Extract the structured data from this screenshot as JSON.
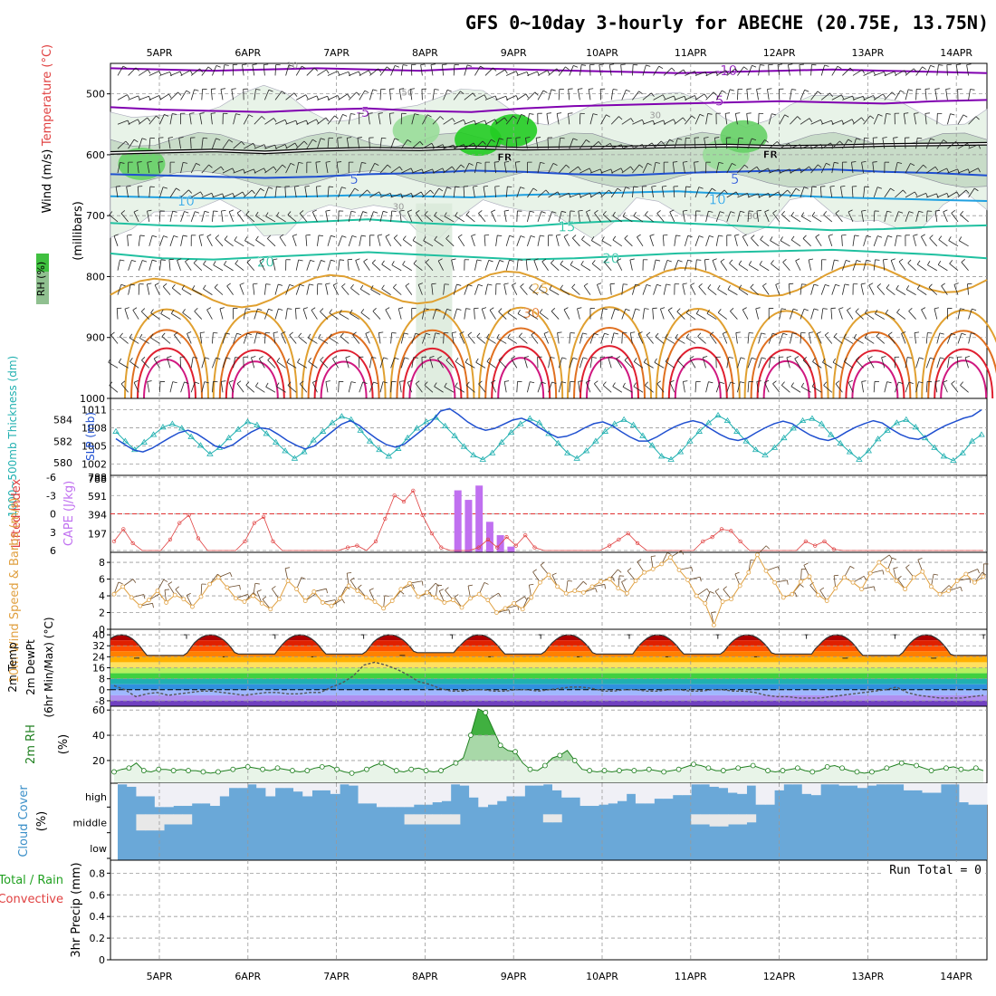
{
  "title": "GFS 0~10day 3-hourly for ABECHE (20.75E, 13.75N)",
  "colors": {
    "purple": "#8000b0",
    "blue": "#2050d0",
    "lightblue": "#20a0e0",
    "teal": "#20c0a0",
    "orange": "#e0a030",
    "darkorange": "#e07020",
    "red": "#e02030",
    "green": "#20c020",
    "cyan": "#20b0b0",
    "cape": "#c070f0",
    "wind": "#e0a040",
    "cloud": "#6aa8d8",
    "grid": "#9a9a9a"
  },
  "icons": {
    "wind_barb": "wind-barb-icon",
    "triangle_marker": "triangle-marker-icon",
    "circle_marker": "circle-marker-icon"
  },
  "chart_data": [
    {
      "panel": "upper-air",
      "type": "heatmap",
      "title": "GFS 0~10day 3-hourly for ABECHE (20.75E, 13.75N)",
      "x_categories": [
        "5APR",
        "6APR",
        "7APR",
        "8APR",
        "9APR",
        "10APR",
        "11APR",
        "12APR",
        "13APR",
        "14APR"
      ],
      "ylabel": "(millibars)",
      "side_labels": [
        "Wind (m/s)",
        "Temperature (°C)",
        "RH (%)"
      ],
      "ylim": [
        1000,
        450
      ],
      "y_ticks": [
        500,
        600,
        700,
        800,
        900,
        1000
      ],
      "isotherm_labels": [
        "-10",
        "-5",
        "-5",
        "FR",
        "FR",
        "5",
        "5",
        "10",
        "10",
        "15",
        "20",
        "20",
        "25",
        "30"
      ],
      "rh_labels": [
        "10",
        "30",
        "50"
      ],
      "isotherms": [
        {
          "temp": -10,
          "p": [
            458,
            460,
            462,
            460,
            458,
            460,
            462,
            458,
            460,
            462,
            464,
            466,
            464,
            462,
            460,
            462,
            464,
            466
          ]
        },
        {
          "temp": -5,
          "p": [
            522,
            526,
            528,
            530,
            526,
            524,
            528,
            530,
            524,
            520,
            518,
            516,
            514,
            512,
            514,
            516,
            512,
            510
          ]
        },
        {
          "temp": 0,
          "p": [
            597,
            595,
            593,
            596,
            592,
            590,
            591,
            588,
            590,
            589,
            588,
            586,
            585,
            587,
            586,
            584,
            583,
            582
          ]
        },
        {
          "temp": 5,
          "p": [
            632,
            634,
            636,
            638,
            636,
            632,
            630,
            626,
            628,
            632,
            634,
            630,
            628,
            626,
            624,
            628,
            630,
            634
          ]
        },
        {
          "temp": 10,
          "p": [
            668,
            670,
            672,
            670,
            668,
            666,
            668,
            670,
            666,
            664,
            662,
            660,
            664,
            666,
            670,
            672,
            674,
            676
          ]
        },
        {
          "temp": 15,
          "p": [
            712,
            716,
            718,
            714,
            710,
            706,
            712,
            716,
            718,
            712,
            708,
            712,
            716,
            720,
            724,
            722,
            718,
            716
          ]
        },
        {
          "temp": 20,
          "p": [
            762,
            770,
            772,
            768,
            764,
            760,
            764,
            768,
            772,
            770,
            766,
            762,
            760,
            758,
            756,
            760,
            764,
            770
          ]
        }
      ],
      "humid_regions": [
        {
          "x": 0.3,
          "p": 615,
          "rh": 70
        },
        {
          "x": 3.4,
          "p": 560,
          "rh": 50
        },
        {
          "x": 4.1,
          "p": 575,
          "rh": 80
        },
        {
          "x": 4.5,
          "p": 560,
          "rh": 90
        },
        {
          "x": 6.9,
          "p": 600,
          "rh": 50
        },
        {
          "x": 7.1,
          "p": 570,
          "rh": 60
        }
      ]
    },
    {
      "panel": "thickness-slp",
      "type": "line",
      "side_labels": [
        "1000~500mb Thickness (dm)",
        "SLP (mb)"
      ],
      "left_ticks": [
        580,
        582,
        584
      ],
      "right_ticks": [
        1002,
        1005,
        1008,
        1011
      ],
      "series": [
        {
          "name": "1000~500mb Thickness",
          "values": [
            582.9,
            582.0,
            581.2,
            581.9,
            582.6,
            583.3,
            583.6,
            583.2,
            582.4,
            581.6,
            580.8,
            581.4,
            582.3,
            583.1,
            583.8,
            583.5,
            582.7,
            581.9,
            581.1,
            580.4,
            581.0,
            582.1,
            582.9,
            583.7,
            584.3,
            584.0,
            583.0,
            582.0,
            581.2,
            580.6,
            581.3,
            582.3,
            583.2,
            583.8,
            584.2,
            583.4,
            582.5,
            581.5,
            580.7,
            580.3,
            580.9,
            581.9,
            582.8,
            583.6,
            584.1,
            583.7,
            582.7,
            581.8,
            580.9,
            580.4,
            581.1,
            582.0,
            582.9,
            583.6,
            584.0,
            583.5,
            582.5,
            581.6,
            580.6,
            580.3,
            581.0,
            582.0,
            582.9,
            583.7,
            584.4,
            583.9,
            582.9,
            582.0,
            581.2,
            580.7,
            581.4,
            582.3,
            583.2,
            583.9,
            584.1,
            583.6,
            582.6,
            581.8,
            581.0,
            580.3,
            581.1,
            582.2,
            583.0,
            583.7,
            584.0,
            583.3,
            582.3,
            581.4,
            580.6,
            580.2,
            580.9,
            582.0,
            582.6
          ]
        },
        {
          "name": "SLP",
          "values": [
            1006.2,
            1005.2,
            1004.3,
            1004.0,
            1004.6,
            1005.5,
            1006.4,
            1007.2,
            1007.6,
            1007.0,
            1006.0,
            1005.0,
            1004.6,
            1005.2,
            1006.3,
            1007.3,
            1008.0,
            1007.8,
            1006.9,
            1005.9,
            1005.1,
            1004.5,
            1005.0,
            1006.2,
            1007.4,
            1008.6,
            1009.2,
            1008.4,
            1007.2,
            1006.1,
            1005.2,
            1004.8,
            1005.3,
            1006.5,
            1007.7,
            1009.0,
            1010.8,
            1011.2,
            1010.2,
            1009.0,
            1008.1,
            1007.6,
            1007.9,
            1008.6,
            1009.3,
            1009.6,
            1009.0,
            1008.0,
            1007.1,
            1006.4,
            1006.6,
            1007.2,
            1008.0,
            1008.7,
            1009.0,
            1008.4,
            1007.4,
            1006.5,
            1005.8,
            1005.8,
            1006.5,
            1007.4,
            1008.2,
            1008.8,
            1009.2,
            1008.8,
            1007.8,
            1006.9,
            1006.2,
            1005.9,
            1006.3,
            1007.2,
            1008.0,
            1008.7,
            1009.1,
            1008.7,
            1007.7,
            1006.8,
            1006.2,
            1005.9,
            1006.4,
            1007.3,
            1008.1,
            1008.7,
            1009.2,
            1008.8,
            1007.8,
            1006.9,
            1006.3,
            1006.1,
            1006.7,
            1007.6,
            1008.4,
            1009.0,
            1009.6,
            1010.0,
            1011.0
          ]
        }
      ]
    },
    {
      "panel": "lifted-cape",
      "type": "bar",
      "side_labels": [
        "Lifted Index",
        "CAPE (J/kg)"
      ],
      "left_ticks": [
        "-6",
        "-3",
        "0",
        "3",
        "6"
      ],
      "right_ticks": [
        "197",
        "394",
        "591",
        "788"
      ],
      "cape_bars": [
        {
          "x": 3.82,
          "value": 650
        },
        {
          "x": 3.94,
          "value": 550
        },
        {
          "x": 4.06,
          "value": 700
        },
        {
          "x": 4.18,
          "value": 320
        },
        {
          "x": 4.3,
          "value": 180
        },
        {
          "x": 4.42,
          "value": 60
        }
      ],
      "lifted_index": [
        4.5,
        2.5,
        4.8,
        6,
        6,
        6,
        4.2,
        1.5,
        0.2,
        4,
        6,
        6,
        6,
        6,
        4.5,
        1.5,
        0.5,
        4.5,
        6,
        6,
        6,
        6,
        6,
        6,
        6,
        5.5,
        5.2,
        6,
        4.5,
        0.8,
        -3,
        -2,
        -3.8,
        0.2,
        3.2,
        5.5,
        6,
        6,
        6,
        5.5,
        4.2,
        5.5,
        3.8,
        5.2,
        3.5,
        5.5,
        6,
        6,
        6,
        6,
        6,
        6,
        6,
        5.2,
        4.2,
        3.2,
        4.8,
        6,
        6,
        6,
        6,
        6,
        6,
        4.5,
        3.8,
        2.5,
        2.8,
        4.5,
        6,
        6,
        6,
        6,
        6,
        6,
        4.5,
        5.2,
        4.5,
        5.8,
        6,
        6,
        6,
        6,
        6,
        6,
        6,
        6,
        6,
        6,
        6,
        6,
        6,
        6,
        6,
        6
      ]
    },
    {
      "panel": "wind-10m",
      "type": "line",
      "side_labels": [
        "10m Wind Speed & Barbs (m/s)"
      ],
      "left_ticks": [
        0,
        2,
        4,
        6,
        8
      ],
      "ylim": [
        0,
        9.2
      ],
      "values": [
        4.2,
        5.1,
        3.8,
        2.8,
        3.5,
        4.6,
        3.2,
        4.1,
        3.6,
        2.7,
        3.9,
        5.4,
        6.2,
        5.0,
        3.7,
        3.3,
        4.0,
        3.1,
        2.4,
        3.6,
        5.8,
        4.8,
        3.4,
        4.5,
        3.2,
        2.8,
        3.7,
        5.2,
        4.6,
        3.8,
        3.3,
        2.5,
        3.4,
        4.8,
        5.5,
        3.9,
        4.4,
        3.8,
        3.2,
        3.5,
        2.6,
        3.7,
        4.2,
        3.5,
        2.0,
        2.5,
        3.1,
        2.4,
        3.8,
        5.6,
        6.5,
        5.1,
        4.3,
        4.6,
        4.4,
        5.1,
        5.7,
        6.0,
        4.9,
        4.3,
        5.8,
        6.8,
        7.2,
        7.8,
        8.6,
        7.1,
        5.9,
        4.0,
        3.1,
        0.5,
        3.3,
        3.6,
        5.2,
        6.8,
        8.9,
        7.0,
        5.6,
        3.8,
        4.2,
        5.7,
        6.3,
        4.1,
        3.4,
        4.9,
        6.2,
        5.6,
        4.8,
        6.7,
        8.0,
        7.1,
        5.8,
        4.8,
        6.2,
        6.9,
        5.1,
        4.2,
        4.6,
        5.8,
        6.6,
        5.6,
        6.3
      ]
    },
    {
      "panel": "temp-dewpt",
      "type": "area",
      "side_labels": [
        "2m Temp",
        "2m DewPt",
        "(6hr Min/Max) (°C)"
      ],
      "left_ticks": [
        "40",
        "32",
        "24",
        "16",
        "8",
        "0",
        "-8"
      ],
      "temp_bands": [
        40,
        36,
        32,
        28,
        24,
        20,
        16,
        12,
        8,
        4,
        0,
        -4,
        -8
      ],
      "temp_max": [
        40,
        40,
        40,
        40,
        40,
        40,
        40,
        40,
        40,
        40
      ],
      "temp_min": [
        25,
        26,
        26,
        27,
        26,
        26,
        26,
        26,
        25,
        25
      ],
      "dewpoint": [
        3,
        0,
        -5,
        -3,
        -2,
        -4,
        -3,
        -2,
        -1,
        -1,
        -2,
        -3,
        -4,
        -3,
        -2,
        -2,
        -3,
        -3,
        -2,
        -2,
        2,
        5,
        10,
        18,
        20,
        18,
        15,
        11,
        6,
        4,
        1,
        -1,
        -1,
        0,
        0,
        -1,
        -1,
        0,
        0,
        -1,
        0,
        1,
        2,
        2,
        1,
        -1,
        -1,
        0,
        0,
        -1,
        -1,
        0,
        0,
        -1,
        -1,
        0,
        0,
        -1,
        -1,
        -2,
        -4,
        -5,
        -5,
        -6,
        -6,
        -6,
        -5,
        -4,
        -3,
        -2,
        -1,
        0,
        2,
        -2,
        -4,
        -5,
        -6,
        -6,
        -6,
        -5,
        -4
      ]
    },
    {
      "panel": "rh-2m",
      "type": "area",
      "side_labels": [
        "2m RH",
        "(%)"
      ],
      "left_ticks": [
        20,
        40,
        60
      ],
      "ylim": [
        2,
        63
      ],
      "values": [
        11,
        13,
        14,
        18,
        12,
        11,
        13,
        13,
        12,
        13,
        12,
        12,
        11,
        10,
        11,
        12,
        13,
        14,
        15,
        14,
        13,
        12,
        14,
        13,
        12,
        11,
        12,
        14,
        15,
        16,
        13,
        11,
        10,
        11,
        13,
        16,
        18,
        15,
        12,
        11,
        13,
        14,
        12,
        11,
        12,
        15,
        18,
        22,
        40,
        61,
        58,
        45,
        32,
        28,
        27,
        18,
        13,
        12,
        16,
        22,
        24,
        28,
        20,
        13,
        12,
        11,
        12,
        11,
        12,
        13,
        12,
        12,
        13,
        12,
        11,
        12,
        13,
        15,
        17,
        16,
        14,
        12,
        12,
        13,
        14,
        15,
        16,
        14,
        12,
        11,
        12,
        13,
        14,
        12,
        11,
        12,
        15,
        16,
        14,
        12,
        11,
        10,
        11,
        12,
        14,
        16,
        18,
        17,
        16,
        14,
        12,
        13,
        14,
        15,
        13,
        12,
        14,
        12
      ]
    },
    {
      "panel": "cloud-cover",
      "type": "heatmap",
      "side_labels": [
        "Cloud Cover",
        "(%)"
      ],
      "rows": [
        "high",
        "middle",
        "low"
      ],
      "high_clear": [
        0.05,
        0.15,
        0.55,
        0.55,
        1,
        1,
        0.95,
        0.95,
        0.85,
        0.85,
        0.95,
        0.55,
        0.2,
        0.2,
        0.05,
        0.2,
        0.55,
        0.2,
        0.2,
        0.35,
        0.55,
        0.3,
        0.3,
        0.45,
        0.05,
        0.1,
        0.85,
        0.85,
        1,
        1,
        1,
        1,
        0.9,
        0.9,
        0.8,
        0.75,
        0.05,
        0.1,
        0.6,
        1,
        0.9,
        0.75,
        0.55,
        0.55,
        0.1,
        0.1,
        0.05,
        0.3,
        0.6,
        0.6,
        0.95,
        0.95,
        0.9,
        0.85,
        0.75,
        0.45,
        0.85,
        0.85,
        0.65,
        0.65,
        0.5,
        0.5,
        0.05,
        0.05,
        0.15,
        0.2,
        0.4,
        0.45,
        0.1,
        0.9,
        0.9,
        0.3,
        0.05,
        0.05,
        0.45,
        0.5,
        0.05,
        0.05,
        0.1,
        0.1,
        0.2,
        0.1,
        0.05,
        0.05,
        0.05,
        0.3,
        0.3,
        0.4,
        0.4,
        0.05,
        0.05,
        0.8,
        0.9,
        0.9
      ],
      "mid_clear": [
        0,
        0,
        0.8,
        0.8,
        0.8,
        0.5,
        0.5,
        0.5,
        0,
        0,
        0,
        0,
        0,
        0,
        0,
        0,
        0,
        0,
        0,
        0,
        0,
        0,
        0,
        0,
        0,
        0,
        0,
        0,
        0,
        0,
        0,
        0.5,
        0.5,
        0.5,
        0.5,
        0.5,
        0.5,
        0,
        0,
        0,
        0,
        0,
        0,
        0,
        0,
        0,
        0.4,
        0.4,
        0,
        0,
        0,
        0,
        0,
        0,
        0,
        0,
        0,
        0,
        0,
        0,
        0,
        0,
        0.5,
        0.5,
        0.6,
        0.6,
        0.5,
        0.5,
        0.4,
        0,
        0,
        0,
        0,
        0,
        0,
        0,
        0,
        0,
        0,
        0,
        0,
        0,
        0,
        0,
        0,
        0,
        0,
        0,
        0,
        0,
        0,
        0,
        0,
        0
      ]
    },
    {
      "panel": "precip",
      "type": "bar",
      "side_labels": [
        "Total / Rain",
        "Convective",
        "3hr Precip (mm)"
      ],
      "left_ticks": [
        "0",
        "0.2",
        "0.4",
        "0.6",
        "0.8"
      ],
      "run_total_label": "Run Total = 0",
      "values": []
    }
  ]
}
